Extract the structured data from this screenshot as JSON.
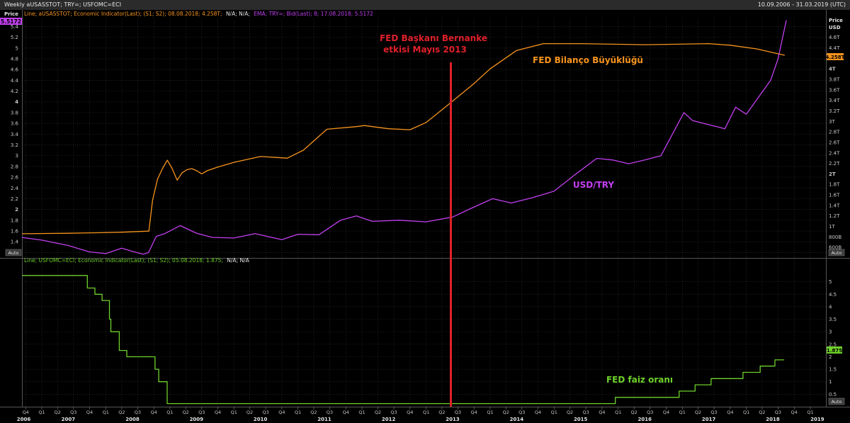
{
  "window": {
    "title": "Weekly aUSASSTOT; TRY=; USFOMC=ECI",
    "date_range": "10.09.2006 - 31.03.2019 (UTC)"
  },
  "top_panel": {
    "legend_prefix": "Line; aUSASSTOT; Economic Indicator(Last); (S1; S2); 08.08.2018; 4.258T;",
    "legend_na": "N/A; N/A;",
    "legend_ema": "EMA; TRY=; Bid(Last); 8; 17.08.2018; 5.5172",
    "left_axis_title": "Price",
    "right_axis_title_1": "Price",
    "right_axis_title_2": "USD",
    "last_value_try": "5.5172",
    "last_value_assets": "4.258T",
    "auto_label": "Auto"
  },
  "bottom_panel": {
    "legend_prefix": "Line; USFOMC=ECI; Economic Indicator(Last); (S1; S2); 05.08.2018; 1.875;",
    "legend_na": "N/A; N/A",
    "last_value_rate": "1.875",
    "auto_label": "Auto"
  },
  "annotations": {
    "bernanke_line1": "FED Başkanı Bernanke",
    "bernanke_line2": "etkisi Mayıs 2013",
    "balance_sheet": "FED Bilanço Büyüklüğü",
    "usdtry": "USD/TRY",
    "fed_rate": "FED faiz oranı"
  },
  "colors": {
    "background": "#000000",
    "grid": "#2e2e2e",
    "assets_line": "#f7941d",
    "usdtry_line": "#c23ff0",
    "fed_rate_line": "#6fd12a",
    "marker_line": "#e0202a",
    "axis_text": "#c8c8c8"
  },
  "chart_data": [
    {
      "type": "line",
      "panel": "top",
      "title": "",
      "xlabel": "",
      "ylabel": "",
      "x_range": [
        "2006-09-10",
        "2019-03-31"
      ],
      "left_axis": {
        "ylim": [
          1.1,
          5.55
        ],
        "ticks": [
          1.2,
          1.4,
          1.6,
          1.8,
          2,
          2.2,
          2.4,
          2.6,
          2.8,
          3,
          3.2,
          3.4,
          3.6,
          3.8,
          4,
          4.2,
          4.4,
          4.6,
          4.8,
          5,
          5.2,
          5.4
        ],
        "tick_labels": [
          "1.2",
          "1.4",
          "1.6",
          "1.8",
          "2",
          "2.2",
          "2.4",
          "2.6",
          "2.8",
          "3",
          "3.2",
          "3.4",
          "3.6",
          "3.8",
          "4",
          "4.2",
          "4.4",
          "4.6",
          "4.8",
          "5",
          "5.2",
          "5.4"
        ]
      },
      "right_axis": {
        "unit": "USD",
        "ylim_trillions": [
          0.4,
          4.96
        ],
        "ticks": [
          0.6,
          0.8,
          1.0,
          1.2,
          1.4,
          1.6,
          1.8,
          2.0,
          2.2,
          2.4,
          2.6,
          2.8,
          3.0,
          3.2,
          3.4,
          3.6,
          3.8,
          4.0,
          4.2,
          4.4,
          4.6
        ],
        "tick_labels": [
          "600B",
          "800B",
          "1T",
          "1.2T",
          "1.4T",
          "1.6T",
          "1.8T",
          "2T",
          "2.2T",
          "2.4T",
          "2.6T",
          "2.8T",
          "3T",
          "3.2T",
          "3.4T",
          "3.6T",
          "3.8T",
          "4T",
          "4.2T",
          "4.4T",
          "4.6T"
        ]
      },
      "series": [
        {
          "name": "FED Bilanço Büyüklüğü",
          "axis": "right",
          "unit": "trillion USD",
          "points": [
            [
              "2006-09-10",
              0.86
            ],
            [
              "2007-06-01",
              0.87
            ],
            [
              "2007-12-01",
              0.88
            ],
            [
              "2008-04-01",
              0.89
            ],
            [
              "2008-09-03",
              0.91
            ],
            [
              "2008-09-24",
              1.5
            ],
            [
              "2008-10-22",
              1.9
            ],
            [
              "2008-11-19",
              2.1
            ],
            [
              "2008-12-17",
              2.26
            ],
            [
              "2009-01-14",
              2.1
            ],
            [
              "2009-02-11",
              1.88
            ],
            [
              "2009-03-11",
              2.02
            ],
            [
              "2009-04-08",
              2.08
            ],
            [
              "2009-05-06",
              2.1
            ],
            [
              "2009-06-03",
              2.06
            ],
            [
              "2009-07-01",
              2.0
            ],
            [
              "2009-08-01",
              2.06
            ],
            [
              "2009-10-01",
              2.13
            ],
            [
              "2010-01-01",
              2.22
            ],
            [
              "2010-06-01",
              2.33
            ],
            [
              "2010-11-01",
              2.3
            ],
            [
              "2011-02-01",
              2.45
            ],
            [
              "2011-06-15",
              2.85
            ],
            [
              "2011-12-01",
              2.9
            ],
            [
              "2012-01-15",
              2.92
            ],
            [
              "2012-06-01",
              2.86
            ],
            [
              "2012-10-01",
              2.84
            ],
            [
              "2013-01-02",
              2.98
            ],
            [
              "2013-05-01",
              3.3
            ],
            [
              "2013-10-01",
              3.72
            ],
            [
              "2014-01-01",
              4.0
            ],
            [
              "2014-06-01",
              4.35
            ],
            [
              "2014-11-01",
              4.48
            ],
            [
              "2015-06-01",
              4.48
            ],
            [
              "2016-06-01",
              4.46
            ],
            [
              "2017-06-01",
              4.48
            ],
            [
              "2017-10-01",
              4.45
            ],
            [
              "2018-03-01",
              4.38
            ],
            [
              "2018-08-08",
              4.258
            ]
          ]
        },
        {
          "name": "USD/TRY",
          "axis": "left",
          "unit": "TRY",
          "points": [
            [
              "2006-09-10",
              1.48
            ],
            [
              "2007-01-01",
              1.43
            ],
            [
              "2007-06-01",
              1.33
            ],
            [
              "2007-10-01",
              1.21
            ],
            [
              "2008-01-01",
              1.18
            ],
            [
              "2008-04-01",
              1.28
            ],
            [
              "2008-06-01",
              1.22
            ],
            [
              "2008-08-01",
              1.17
            ],
            [
              "2008-09-01",
              1.2
            ],
            [
              "2008-10-15",
              1.5
            ],
            [
              "2008-12-01",
              1.55
            ],
            [
              "2009-03-01",
              1.7
            ],
            [
              "2009-06-01",
              1.56
            ],
            [
              "2009-09-01",
              1.48
            ],
            [
              "2010-01-01",
              1.47
            ],
            [
              "2010-05-01",
              1.55
            ],
            [
              "2010-10-01",
              1.44
            ],
            [
              "2011-01-01",
              1.54
            ],
            [
              "2011-05-01",
              1.53
            ],
            [
              "2011-09-01",
              1.8
            ],
            [
              "2011-12-01",
              1.88
            ],
            [
              "2012-03-01",
              1.78
            ],
            [
              "2012-08-01",
              1.8
            ],
            [
              "2013-01-01",
              1.77
            ],
            [
              "2013-06-01",
              1.86
            ],
            [
              "2013-09-01",
              2.0
            ],
            [
              "2014-01-15",
              2.2
            ],
            [
              "2014-05-01",
              2.12
            ],
            [
              "2014-09-01",
              2.22
            ],
            [
              "2015-01-01",
              2.34
            ],
            [
              "2015-05-01",
              2.65
            ],
            [
              "2015-09-01",
              2.95
            ],
            [
              "2015-12-01",
              2.92
            ],
            [
              "2016-03-01",
              2.85
            ],
            [
              "2016-06-01",
              2.92
            ],
            [
              "2016-09-01",
              3.0
            ],
            [
              "2017-01-10",
              3.8
            ],
            [
              "2017-03-01",
              3.65
            ],
            [
              "2017-09-01",
              3.5
            ],
            [
              "2017-11-01",
              3.9
            ],
            [
              "2018-01-01",
              3.77
            ],
            [
              "2018-05-20",
              4.4
            ],
            [
              "2018-07-01",
              4.8
            ],
            [
              "2018-08-17",
              5.5172
            ]
          ]
        }
      ],
      "vertical_marker": {
        "date": "2013-05-22",
        "label": "FED Başkanı Bernanke etkisi Mayıs 2013"
      }
    },
    {
      "type": "line",
      "panel": "bottom",
      "title": "",
      "xlabel": "",
      "ylabel": "",
      "x_range": [
        "2006-09-10",
        "2019-03-31"
      ],
      "right_axis": {
        "ylim": [
          0,
          5.5
        ],
        "ticks": [
          0.5,
          1,
          1.5,
          2,
          2.5,
          3,
          3.5,
          4,
          4.5,
          5
        ],
        "tick_labels": [
          "0.5",
          "1",
          "1.5",
          "2",
          "2.5",
          "3",
          "3.5",
          "4",
          "4.5",
          "5"
        ]
      },
      "series": [
        {
          "name": "FED faiz oranı",
          "step": true,
          "points": [
            [
              "2006-09-10",
              5.25
            ],
            [
              "2007-09-18",
              4.75
            ],
            [
              "2007-10-31",
              4.5
            ],
            [
              "2007-12-11",
              4.25
            ],
            [
              "2008-01-22",
              3.5
            ],
            [
              "2008-01-30",
              3.0
            ],
            [
              "2008-03-18",
              2.25
            ],
            [
              "2008-04-30",
              2.0
            ],
            [
              "2008-10-08",
              1.5
            ],
            [
              "2008-10-29",
              1.0
            ],
            [
              "2008-12-16",
              0.125
            ],
            [
              "2015-12-16",
              0.375
            ],
            [
              "2016-12-14",
              0.625
            ],
            [
              "2017-03-15",
              0.875
            ],
            [
              "2017-06-14",
              1.125
            ],
            [
              "2017-12-13",
              1.375
            ],
            [
              "2018-03-21",
              1.625
            ],
            [
              "2018-06-13",
              1.875
            ],
            [
              "2018-08-05",
              1.875
            ]
          ]
        }
      ]
    }
  ],
  "x_axis": {
    "quarter_ticks": [
      {
        "date": "2006-10-01",
        "label": "Q4"
      },
      {
        "date": "2007-01-01",
        "label": "Q1"
      },
      {
        "date": "2007-04-01",
        "label": "Q2"
      },
      {
        "date": "2007-07-01",
        "label": "Q3"
      },
      {
        "date": "2007-10-01",
        "label": "Q4"
      },
      {
        "date": "2008-01-01",
        "label": "Q1"
      },
      {
        "date": "2008-04-01",
        "label": "Q2"
      },
      {
        "date": "2008-07-01",
        "label": "Q3"
      },
      {
        "date": "2008-10-01",
        "label": "Q4"
      },
      {
        "date": "2009-01-01",
        "label": "Q1"
      },
      {
        "date": "2009-04-01",
        "label": "Q2"
      },
      {
        "date": "2009-07-01",
        "label": "Q3"
      },
      {
        "date": "2009-10-01",
        "label": "Q4"
      },
      {
        "date": "2010-01-01",
        "label": "Q1"
      },
      {
        "date": "2010-04-01",
        "label": "Q2"
      },
      {
        "date": "2010-07-01",
        "label": "Q3"
      },
      {
        "date": "2010-10-01",
        "label": "Q4"
      },
      {
        "date": "2011-01-01",
        "label": "Q1"
      },
      {
        "date": "2011-04-01",
        "label": "Q2"
      },
      {
        "date": "2011-07-01",
        "label": "Q3"
      },
      {
        "date": "2011-10-01",
        "label": "Q4"
      },
      {
        "date": "2012-01-01",
        "label": "Q1"
      },
      {
        "date": "2012-04-01",
        "label": "Q2"
      },
      {
        "date": "2012-07-01",
        "label": "Q3"
      },
      {
        "date": "2012-10-01",
        "label": "Q4"
      },
      {
        "date": "2013-01-01",
        "label": "Q1"
      },
      {
        "date": "2013-04-01",
        "label": "Q2"
      },
      {
        "date": "2013-07-01",
        "label": "Q3"
      },
      {
        "date": "2013-10-01",
        "label": "Q4"
      },
      {
        "date": "2014-01-01",
        "label": "Q1"
      },
      {
        "date": "2014-04-01",
        "label": "Q2"
      },
      {
        "date": "2014-07-01",
        "label": "Q3"
      },
      {
        "date": "2014-10-01",
        "label": "Q4"
      },
      {
        "date": "2015-01-01",
        "label": "Q1"
      },
      {
        "date": "2015-04-01",
        "label": "Q2"
      },
      {
        "date": "2015-07-01",
        "label": "Q3"
      },
      {
        "date": "2015-10-01",
        "label": "Q4"
      },
      {
        "date": "2016-01-01",
        "label": "Q1"
      },
      {
        "date": "2016-04-01",
        "label": "Q2"
      },
      {
        "date": "2016-07-01",
        "label": "Q3"
      },
      {
        "date": "2016-10-01",
        "label": "Q4"
      },
      {
        "date": "2017-01-01",
        "label": "Q1"
      },
      {
        "date": "2017-04-01",
        "label": "Q2"
      },
      {
        "date": "2017-07-01",
        "label": "Q3"
      },
      {
        "date": "2017-10-01",
        "label": "Q4"
      },
      {
        "date": "2018-01-01",
        "label": "Q1"
      },
      {
        "date": "2018-04-01",
        "label": "Q2"
      },
      {
        "date": "2018-07-01",
        "label": "Q3"
      },
      {
        "date": "2018-10-01",
        "label": "Q4"
      },
      {
        "date": "2019-01-01",
        "label": "Q1"
      }
    ],
    "year_labels": [
      {
        "date": "2006-09-20",
        "label": "2006"
      },
      {
        "date": "2007-06-01",
        "label": "2007"
      },
      {
        "date": "2008-06-01",
        "label": "2008"
      },
      {
        "date": "2009-06-01",
        "label": "2009"
      },
      {
        "date": "2010-06-01",
        "label": "2010"
      },
      {
        "date": "2011-06-01",
        "label": "2011"
      },
      {
        "date": "2012-06-01",
        "label": "2012"
      },
      {
        "date": "2013-06-01",
        "label": "2013"
      },
      {
        "date": "2014-06-01",
        "label": "2014"
      },
      {
        "date": "2015-06-01",
        "label": "2015"
      },
      {
        "date": "2016-06-01",
        "label": "2016"
      },
      {
        "date": "2017-06-01",
        "label": "2017"
      },
      {
        "date": "2018-06-01",
        "label": "2018"
      },
      {
        "date": "2019-02-10",
        "label": "2019"
      }
    ]
  }
}
